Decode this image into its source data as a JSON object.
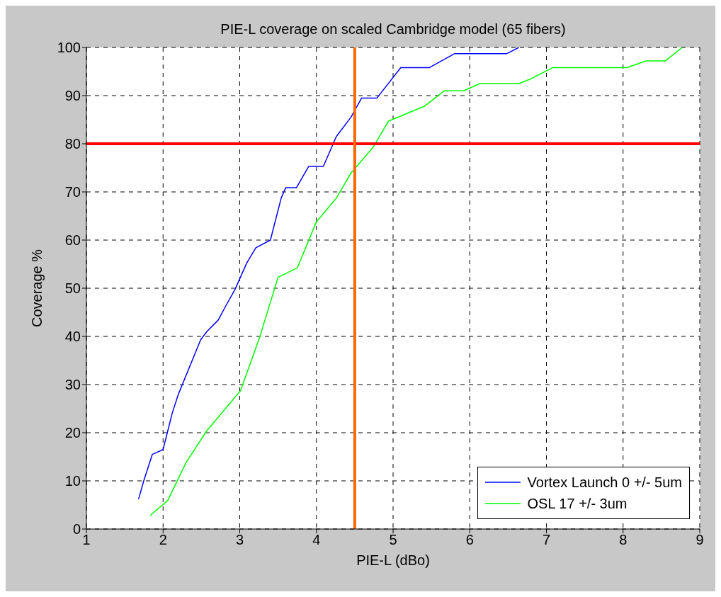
{
  "chart_data": {
    "type": "line",
    "title": "PIE-L coverage on scaled Cambridge model (65 fibers)",
    "xlabel": "PIE-L (dBo)",
    "ylabel": "Coverage %",
    "xlim": [
      1,
      9
    ],
    "xticks": [
      1,
      2,
      3,
      4,
      5,
      6,
      7,
      8,
      9
    ],
    "ylim": [
      0,
      100
    ],
    "yticks": [
      0,
      10,
      20,
      30,
      40,
      50,
      60,
      70,
      80,
      90,
      100
    ],
    "grid": true,
    "line_style": "solid",
    "marker": "none",
    "legend": "bottom right",
    "series": [
      {
        "name": "Vortex Launch 0 +/- 5um",
        "color": "#0000ff",
        "x": [
          1.68,
          1.75,
          1.86,
          2.0,
          2.12,
          2.2,
          2.49,
          2.57,
          2.72,
          2.81,
          2.94,
          3.09,
          3.21,
          3.4,
          3.54,
          3.6,
          3.74,
          3.9,
          4.09,
          4.26,
          4.45,
          4.59,
          4.79,
          5.1,
          5.47,
          5.8,
          6.48,
          6.64
        ],
        "values": [
          6.2,
          10.1,
          15.5,
          16.5,
          24.1,
          28,
          39.3,
          41,
          43.4,
          46.1,
          49.8,
          55.2,
          58.4,
          60,
          68.7,
          70.9,
          70.9,
          75.3,
          75.3,
          81.5,
          85.5,
          89.5,
          89.5,
          95.8,
          95.8,
          98.7,
          98.7,
          100
        ]
      },
      {
        "name": "OSL 17 +/- 3um",
        "color": "#00ff00",
        "x": [
          1.83,
          2.06,
          2.3,
          2.57,
          3.01,
          3.26,
          3.5,
          3.75,
          4.0,
          4.26,
          4.45,
          4.74,
          4.94,
          5.41,
          5.67,
          5.92,
          6.13,
          6.64,
          6.8,
          7.08,
          8.05,
          8.3,
          8.55,
          8.77
        ],
        "values": [
          2.8,
          5.9,
          13.8,
          20.4,
          28.7,
          39.8,
          52.3,
          54.2,
          63.8,
          68.7,
          73.9,
          79.3,
          84.7,
          87.8,
          91,
          91,
          92.5,
          92.5,
          93.5,
          95.8,
          95.8,
          97.2,
          97.2,
          100
        ]
      }
    ],
    "ref_lines": [
      {
        "axis": "y",
        "value": 80,
        "color": "#ff0000"
      },
      {
        "axis": "x",
        "value": 4.5,
        "color": "#ff6600"
      }
    ]
  }
}
